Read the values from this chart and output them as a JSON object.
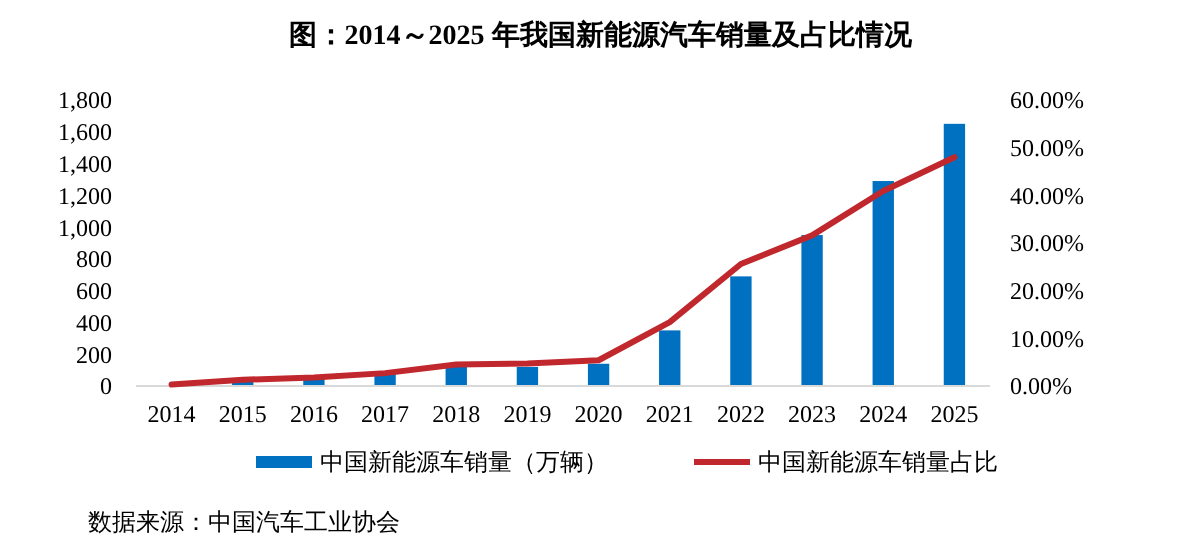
{
  "chart_data": {
    "type": "bar",
    "title": "图：2014～2025 年我国新能源汽车销量及占比情况",
    "categories": [
      "2014",
      "2015",
      "2016",
      "2017",
      "2018",
      "2019",
      "2020",
      "2021",
      "2022",
      "2023",
      "2024",
      "2025"
    ],
    "series": [
      {
        "name": "中国新能源车销量（万辆）",
        "color": "#0070c0",
        "values": [
          null,
          30,
          50,
          80,
          130,
          120,
          140,
          350,
          690,
          950,
          1290,
          1650
        ]
      },
      {
        "name": "中国新能源车销量占比",
        "type": "line",
        "axis": "y2",
        "color": "#c0282d",
        "values": [
          0.3,
          1.3,
          1.8,
          2.7,
          4.5,
          4.7,
          5.4,
          13.4,
          25.6,
          31.6,
          40.9,
          48
        ]
      }
    ],
    "ylim": [
      0,
      1800
    ],
    "yticks": [
      0,
      {
        "value": 200,
        "label": "200"
      },
      {
        "value": 400,
        "label": "400"
      },
      {
        "value": 600,
        "label": "600"
      },
      {
        "value": 800,
        "label": "800"
      },
      {
        "value": 1000,
        "label": "1,000"
      },
      {
        "value": 1200,
        "label": "1,200"
      },
      {
        "value": 1400,
        "label": "1,400"
      },
      {
        "value": 1600,
        "label": "1,600"
      },
      {
        "value": 1800,
        "label": "1,800"
      }
    ],
    "y2lim": [
      0,
      60
    ],
    "y2ticks": [
      {
        "value": 0,
        "label": "0.00%"
      },
      {
        "value": 10,
        "label": "10.00%"
      },
      {
        "value": 20,
        "label": "20.00%"
      },
      {
        "value": 30,
        "label": "30.00%"
      },
      {
        "value": 40,
        "label": "40.00%"
      },
      {
        "value": 50,
        "label": "50.00%"
      },
      {
        "value": 60,
        "label": "60.00%"
      }
    ],
    "legend": "bottom",
    "marker": "none",
    "line_style": "solid",
    "annotations": [
      "数据来源：中国汽车工业协会"
    ]
  }
}
